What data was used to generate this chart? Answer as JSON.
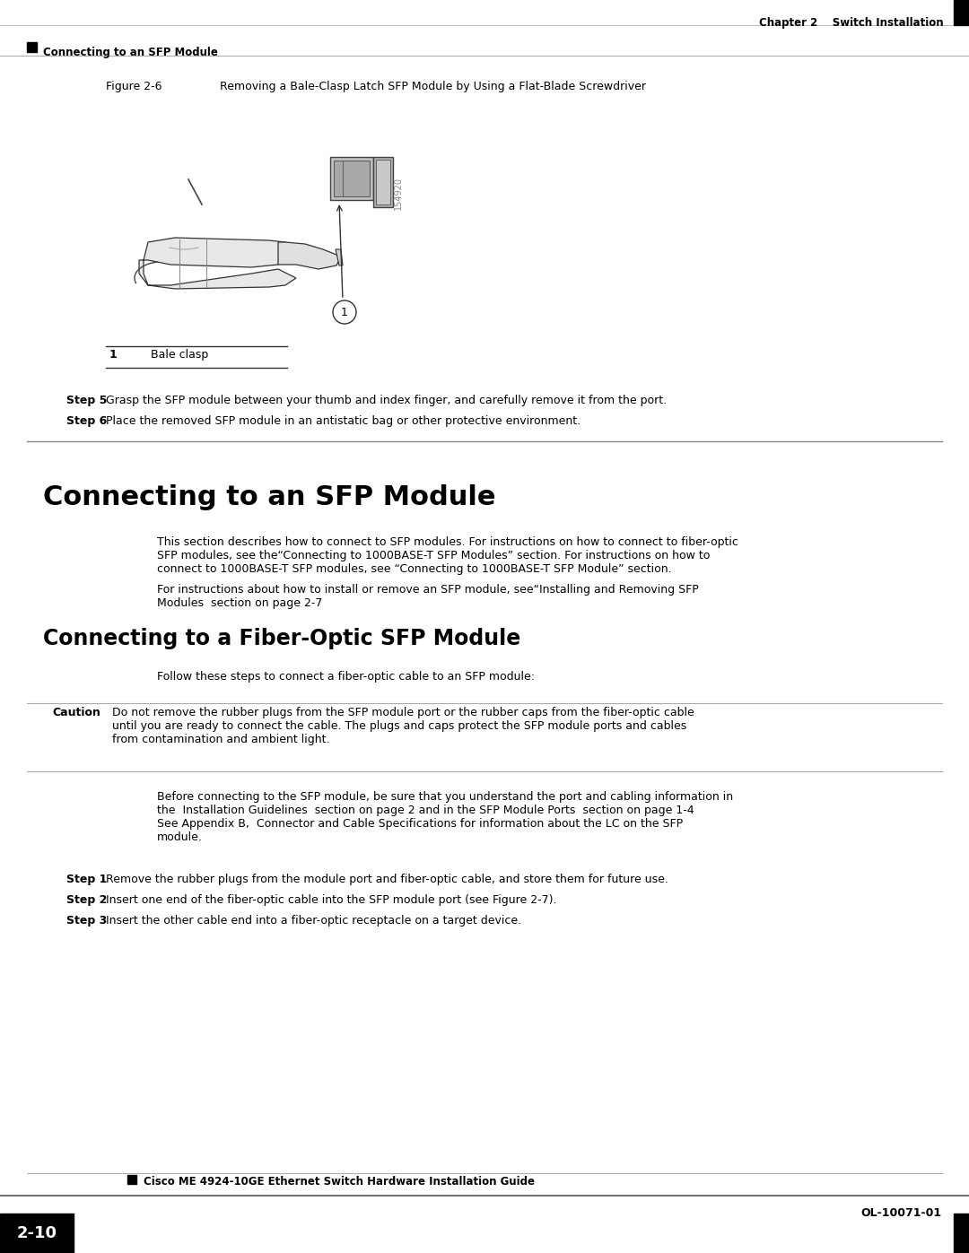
{
  "page_bg": "#ffffff",
  "header_right": "Chapter 2    Switch Installation",
  "header_left": "Connecting to an SFP Module",
  "figure_caption_left": "Figure 2-6",
  "figure_caption_right": "Removing a Bale-Clasp Latch SFP Module by Using a Flat-Blade Screwdriver",
  "legend_num": "1",
  "legend_text": "Bale clasp",
  "step5_label": "Step 5",
  "step5": "Grasp the SFP module between your thumb and index finger, and carefully remove it from the port.",
  "step6_label": "Step 6",
  "step6": "Place the removed SFP module in an antistatic bag or other protective environment.",
  "sec1_title": "Connecting to an SFP Module",
  "sec1_lines": [
    "This section describes how to connect to SFP modules. For instructions on how to connect to fiber-optic",
    "SFP modules, see the“Connecting to 1000BASE-T SFP Modules” section. For instructions on how to",
    "connect to 1000BASE-T SFP modules, see “Connecting to 1000BASE-T SFP Module” section."
  ],
  "sec1_lines2": [
    "For instructions about how to install or remove an SFP module, see“Installing and Removing SFP",
    "Modules  section on page 2-7"
  ],
  "sec2_title": "Connecting to a Fiber-Optic SFP Module",
  "sec2_intro": "Follow these steps to connect a fiber-optic cable to an SFP module:",
  "caution_label": "Caution",
  "caution_lines": [
    "Do not remove the rubber plugs from the SFP module port or the rubber caps from the fiber-optic cable",
    "until you are ready to connect the cable. The plugs and caps protect the SFP module ports and cables",
    "from contamination and ambient light."
  ],
  "para_lines": [
    "Before connecting to the SFP module, be sure that you understand the port and cabling information in",
    "the  Installation Guidelines  section on page 2 and in the SFP Module Ports  section on page 1-4",
    "See Appendix B,  Connector and Cable Specifications for information about the LC on the SFP",
    "module."
  ],
  "step1_label": "Step 1",
  "step1": "Remove the rubber plugs from the module port and fiber-optic cable, and store them for future use.",
  "step2_label": "Step 2",
  "step2": "Insert one end of the fiber-optic cable into the SFP module port (see Figure 2-7).",
  "step3_label": "Step 3",
  "step3": "Insert the other cable end into a fiber-optic receptacle on a target device.",
  "footer_guide": "Cisco ME 4924-10GE Ethernet Switch Hardware Installation Guide",
  "footer_page": "2-10",
  "footer_doc": "OL-10071-01",
  "watermark": "154920"
}
